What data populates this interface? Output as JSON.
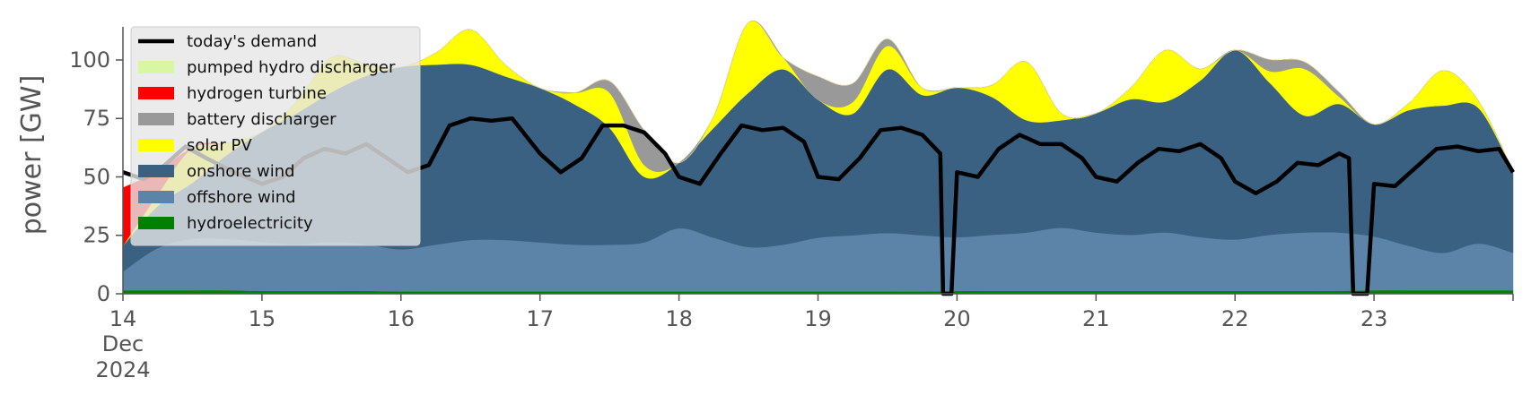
{
  "chart_data": {
    "type": "area",
    "ylabel": "power [GW]",
    "xlabel": "",
    "xlim": [
      14,
      24
    ],
    "ylim": [
      0,
      118
    ],
    "yticks": [
      0,
      25,
      50,
      75,
      100
    ],
    "xticks": [
      {
        "x": 14,
        "label": "14",
        "sublabel1": "Dec",
        "sublabel2": "2024"
      },
      {
        "x": 15,
        "label": "15"
      },
      {
        "x": 16,
        "label": "16"
      },
      {
        "x": 17,
        "label": "17"
      },
      {
        "x": 18,
        "label": "18"
      },
      {
        "x": 19,
        "label": "19"
      },
      {
        "x": 20,
        "label": "20"
      },
      {
        "x": 21,
        "label": "21"
      },
      {
        "x": 22,
        "label": "22"
      },
      {
        "x": 23,
        "label": "23"
      }
    ],
    "grid": false,
    "legend_position": "top-left",
    "x": [
      14.0,
      14.25,
      14.5,
      14.75,
      15.0,
      15.25,
      15.5,
      15.75,
      16.0,
      16.25,
      16.5,
      16.75,
      17.0,
      17.25,
      17.5,
      17.75,
      18.0,
      18.25,
      18.5,
      18.75,
      19.0,
      19.25,
      19.5,
      19.75,
      20.0,
      20.25,
      20.5,
      20.75,
      21.0,
      21.25,
      21.5,
      21.75,
      22.0,
      22.25,
      22.5,
      22.75,
      23.0,
      23.25,
      23.5,
      23.75,
      24.0
    ],
    "series": [
      {
        "name": "hydroelectricity",
        "color": "#008000",
        "values": [
          1.5,
          1.5,
          1.5,
          1.5,
          1.2,
          1.2,
          1.2,
          1.2,
          1.0,
          1.0,
          1.0,
          1.0,
          1.0,
          1.0,
          1.0,
          1.0,
          1.0,
          1.0,
          1.0,
          1.0,
          1.0,
          1.0,
          1.0,
          1.0,
          1.2,
          1.2,
          1.2,
          1.2,
          1.2,
          1.2,
          1.2,
          1.2,
          1.2,
          1.2,
          1.2,
          1.2,
          1.5,
          1.5,
          1.5,
          1.5,
          1.5
        ]
      },
      {
        "name": "offshore wind",
        "color": "#5b84a8",
        "values": [
          8,
          18,
          22,
          22,
          21,
          20,
          21,
          20,
          18,
          20,
          22,
          22,
          21,
          20,
          20,
          21,
          27,
          23,
          19,
          20,
          23,
          24,
          25,
          24,
          23,
          24,
          25,
          27,
          25,
          24,
          25,
          23,
          22,
          24,
          25,
          25,
          23,
          19,
          16,
          20,
          16
        ]
      },
      {
        "name": "onshore wind",
        "color": "#3b6182",
        "values": [
          11,
          18,
          24,
          36,
          47,
          56,
          64,
          72,
          78,
          77,
          75,
          70,
          66,
          60,
          50,
          28,
          28,
          47,
          66,
          75,
          59,
          52,
          70,
          60,
          64,
          59,
          48,
          46,
          51,
          58,
          56,
          67,
          81,
          65,
          50,
          55,
          48,
          58,
          63,
          58,
          35
        ]
      },
      {
        "name": "solar PV",
        "color": "#ffff00",
        "values": [
          0,
          5,
          15,
          5,
          0,
          5,
          15,
          5,
          0,
          5,
          15,
          5,
          0,
          5,
          15,
          5,
          0,
          5,
          30,
          5,
          0,
          5,
          10,
          3,
          0,
          5,
          25,
          3,
          0,
          5,
          22,
          5,
          0,
          5,
          20,
          3,
          0,
          3,
          15,
          3,
          0
        ]
      },
      {
        "name": "battery discharger",
        "color": "#999999",
        "values": [
          0,
          0,
          0,
          0,
          0,
          0,
          0,
          0,
          0,
          0,
          0,
          0,
          0,
          0,
          5,
          15,
          0,
          0,
          0,
          0,
          10,
          8,
          3,
          0,
          0,
          0,
          0,
          0,
          0,
          0,
          0,
          0,
          0,
          5,
          3,
          2,
          0,
          0,
          0,
          0,
          0
        ]
      },
      {
        "name": "hydrogen turbine",
        "color": "#ff0000",
        "values": [
          25,
          10,
          0,
          0,
          0,
          0,
          0,
          0,
          0,
          0,
          0,
          0,
          0,
          0,
          0,
          0,
          0,
          0,
          0,
          0,
          0,
          0,
          0,
          0,
          0,
          0,
          0,
          0,
          0,
          0,
          0,
          0,
          0,
          0,
          0,
          0,
          0,
          0,
          0,
          0,
          0
        ]
      },
      {
        "name": "pumped hydro discharger",
        "color": "#d9f7a1",
        "values": [
          0,
          0,
          0,
          0,
          0,
          0,
          0,
          0,
          0,
          0,
          0,
          0,
          0,
          0,
          0,
          0,
          0,
          0,
          0,
          0,
          0,
          0,
          0,
          0,
          0,
          0,
          0,
          0,
          0,
          0,
          0,
          0,
          0,
          0,
          0,
          0,
          0,
          0,
          0,
          0,
          0
        ]
      }
    ],
    "demand": {
      "name": "today's demand",
      "color": "#000000",
      "x": [
        14.0,
        14.15,
        14.3,
        14.45,
        14.6,
        14.8,
        15.0,
        15.15,
        15.3,
        15.45,
        15.6,
        15.75,
        15.9,
        16.05,
        16.2,
        16.35,
        16.5,
        16.65,
        16.8,
        17.0,
        17.15,
        17.3,
        17.45,
        17.6,
        17.75,
        17.9,
        18.0,
        18.15,
        18.3,
        18.45,
        18.6,
        18.75,
        18.9,
        19.0,
        19.15,
        19.3,
        19.45,
        19.6,
        19.75,
        19.88,
        19.9,
        19.96,
        20.0,
        20.15,
        20.3,
        20.45,
        20.6,
        20.75,
        20.9,
        21.0,
        21.15,
        21.3,
        21.45,
        21.6,
        21.75,
        21.9,
        22.0,
        22.15,
        22.3,
        22.45,
        22.6,
        22.75,
        22.82,
        22.85,
        22.95,
        23.0,
        23.15,
        23.3,
        23.45,
        23.6,
        23.75,
        23.9,
        24.0
      ],
      "values": [
        52,
        49,
        55,
        63,
        58,
        52,
        47,
        50,
        58,
        62,
        60,
        64,
        58,
        52,
        55,
        72,
        75,
        74,
        75,
        60,
        52,
        58,
        72,
        72,
        69,
        60,
        50,
        47,
        60,
        72,
        70,
        71,
        65,
        50,
        49,
        58,
        70,
        71,
        68,
        60,
        0,
        0,
        52,
        50,
        62,
        68,
        64,
        64,
        58,
        50,
        48,
        56,
        62,
        61,
        64,
        58,
        48,
        43,
        48,
        56,
        55,
        60,
        58,
        0,
        0,
        47,
        46,
        54,
        62,
        63,
        61,
        62,
        52
      ]
    },
    "legend": [
      {
        "label": "today's demand",
        "kind": "line",
        "color": "#000000"
      },
      {
        "label": "pumped hydro discharger",
        "kind": "patch",
        "color": "#d9f7a1"
      },
      {
        "label": "hydrogen turbine",
        "kind": "patch",
        "color": "#ff0000"
      },
      {
        "label": "battery discharger",
        "kind": "patch",
        "color": "#999999"
      },
      {
        "label": "solar PV",
        "kind": "patch",
        "color": "#ffff00"
      },
      {
        "label": "onshore wind",
        "kind": "patch",
        "color": "#3b6182"
      },
      {
        "label": "offshore wind",
        "kind": "patch",
        "color": "#5b84a8"
      },
      {
        "label": "hydroelectricity",
        "kind": "patch",
        "color": "#008000"
      }
    ]
  }
}
